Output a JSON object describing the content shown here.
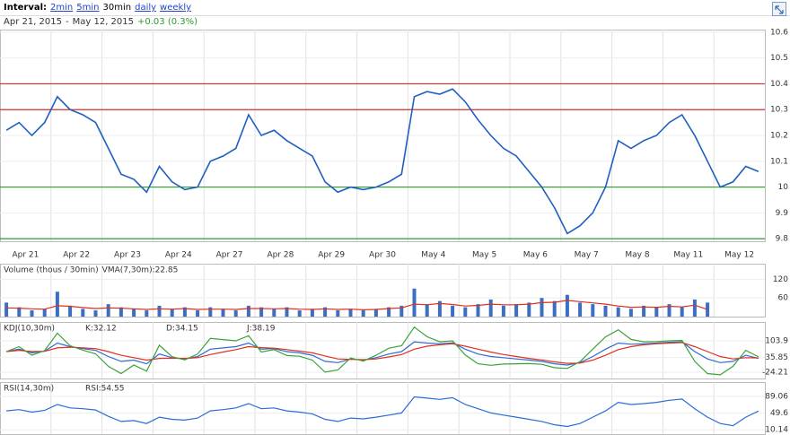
{
  "toolbar": {
    "interval_label": "Interval:",
    "intervals": [
      "2min",
      "5min",
      "30min",
      "daily",
      "weekly"
    ]
  },
  "range": {
    "start": "Apr 21, 2015",
    "separator": "-",
    "end": "May 12, 2015",
    "change": "+0.03 (0.3%)"
  },
  "chart_data": [
    {
      "type": "line",
      "day_labels": [
        "Apr 21",
        "Apr 22",
        "Apr 23",
        "Apr 24",
        "Apr 27",
        "Apr 28",
        "Apr 29",
        "Apr 30",
        "May 4",
        "May 5",
        "May 6",
        "May 7",
        "May 8",
        "May 11",
        "May 12"
      ],
      "ylim": [
        9.79,
        10.61
      ],
      "yticks": [
        10.6,
        10.5,
        10.4,
        10.3,
        10.2,
        10.1,
        10.0,
        9.9,
        9.8
      ],
      "levels": [
        {
          "value": 10.4,
          "color": "#d32f2f"
        },
        {
          "value": 10.3,
          "color": "#d32f2f"
        },
        {
          "value": 10.0,
          "color": "#2e9a2e"
        },
        {
          "value": 9.8,
          "color": "#2e9a2e"
        }
      ],
      "series": [
        {
          "type": "line",
          "color": "#1f5fbf",
          "values": [
            10.22,
            10.25,
            10.2,
            10.25,
            10.35,
            10.3,
            10.28,
            10.25,
            10.15,
            10.05,
            10.03,
            9.98,
            10.08,
            10.02,
            9.99,
            10.0,
            10.1,
            10.12,
            10.15,
            10.28,
            10.2,
            10.22,
            10.18,
            10.15,
            10.12,
            10.02,
            9.98,
            10.0,
            9.99,
            10.0,
            10.02,
            10.05,
            10.35,
            10.37,
            10.36,
            10.38,
            10.33,
            10.26,
            10.2,
            10.15,
            10.12,
            10.06,
            10.0,
            9.92,
            9.82,
            9.85,
            9.9,
            10.0,
            10.18,
            10.15,
            10.18,
            10.2,
            10.25,
            10.28,
            10.2,
            10.1,
            10.0,
            10.02,
            10.08,
            10.06
          ]
        }
      ]
    },
    {
      "type": "bar",
      "title": "Volume (thous / 30min)",
      "ylim": [
        0,
        170
      ],
      "yticks": [
        120,
        60
      ],
      "series": [
        {
          "type": "bar",
          "color": "#3a6fc4",
          "values": [
            45,
            30,
            20,
            25,
            80,
            35,
            25,
            20,
            40,
            30,
            25,
            20,
            35,
            25,
            30,
            20,
            30,
            25,
            20,
            35,
            30,
            25,
            30,
            20,
            25,
            30,
            20,
            25,
            20,
            25,
            30,
            35,
            90,
            40,
            50,
            35,
            30,
            40,
            55,
            35,
            40,
            45,
            60,
            50,
            70,
            45,
            40,
            35,
            30,
            25,
            35,
            30,
            40,
            30,
            55,
            45
          ]
        },
        {
          "type": "line",
          "name": "VMA(7,30m):22.85",
          "color": "#e0301e",
          "values": [
            28,
            27,
            25,
            24,
            35,
            33,
            29,
            26,
            28,
            27,
            25,
            23,
            25,
            24,
            26,
            23,
            24,
            24,
            23,
            26,
            26,
            25,
            26,
            24,
            23,
            25,
            23,
            24,
            22,
            23,
            26,
            28,
            40,
            38,
            42,
            39,
            34,
            36,
            40,
            38,
            38,
            40,
            45,
            46,
            52,
            48,
            44,
            40,
            34,
            30,
            31,
            30,
            33,
            31,
            37,
            22.85
          ]
        }
      ]
    },
    {
      "type": "line",
      "title": "KDJ(10,30m)",
      "ylim": [
        -50,
        181
      ],
      "yticks": [
        103.9,
        35.85,
        -24.21
      ],
      "series": [
        {
          "type": "line",
          "name": "K:32.12",
          "color": "#2b6cd6",
          "values": [
            60,
            70,
            55,
            62,
            95,
            80,
            72,
            65,
            40,
            20,
            25,
            10,
            50,
            35,
            30,
            40,
            70,
            75,
            80,
            95,
            70,
            72,
            60,
            55,
            45,
            20,
            15,
            30,
            25,
            35,
            50,
            60,
            100,
            95,
            92,
            96,
            70,
            50,
            40,
            35,
            30,
            25,
            20,
            10,
            5,
            15,
            40,
            70,
            95,
            90,
            92,
            95,
            98,
            100,
            60,
            30,
            15,
            20,
            45,
            32.12
          ]
        },
        {
          "type": "line",
          "name": "D:34.15",
          "color": "#e0301e",
          "values": [
            60,
            65,
            60,
            61,
            75,
            78,
            75,
            72,
            60,
            45,
            35,
            25,
            32,
            33,
            32,
            35,
            48,
            58,
            68,
            80,
            76,
            74,
            68,
            62,
            55,
            42,
            30,
            28,
            27,
            30,
            38,
            48,
            70,
            82,
            88,
            92,
            82,
            70,
            58,
            48,
            40,
            32,
            26,
            18,
            12,
            13,
            25,
            45,
            68,
            80,
            88,
            92,
            95,
            97,
            80,
            60,
            40,
            30,
            35,
            34.15
          ]
        },
        {
          "type": "line",
          "name": "J:38.19",
          "color": "#3aa33a",
          "values": [
            60,
            80,
            45,
            64,
            135,
            84,
            66,
            51,
            0,
            -30,
            5,
            -20,
            86,
            39,
            26,
            50,
            114,
            109,
            104,
            125,
            58,
            68,
            44,
            41,
            25,
            -24,
            -15,
            34,
            21,
            45,
            74,
            84,
            160,
            121,
            100,
            104,
            46,
            10,
            4,
            9,
            10,
            11,
            8,
            -6,
            -9,
            19,
            70,
            120,
            149,
            110,
            100,
            101,
            104,
            106,
            20,
            -30,
            -35,
            0,
            65,
            38.19
          ]
        }
      ]
    },
    {
      "type": "line",
      "title": "RSI(14,30m)",
      "ylim": [
        0,
        123
      ],
      "yticks": [
        89.06,
        49.6,
        10.14
      ],
      "series": [
        {
          "type": "line",
          "name": "RSI:54.55",
          "color": "#2b6cd6",
          "values": [
            55,
            58,
            52,
            56,
            70,
            62,
            60,
            57,
            42,
            30,
            32,
            25,
            40,
            35,
            33,
            38,
            55,
            58,
            62,
            72,
            60,
            62,
            55,
            52,
            48,
            35,
            30,
            38,
            36,
            40,
            45,
            50,
            88,
            85,
            82,
            86,
            70,
            60,
            50,
            45,
            40,
            35,
            30,
            22,
            18,
            25,
            40,
            55,
            75,
            70,
            72,
            75,
            80,
            83,
            60,
            40,
            25,
            20,
            40,
            54.55
          ]
        }
      ]
    }
  ]
}
